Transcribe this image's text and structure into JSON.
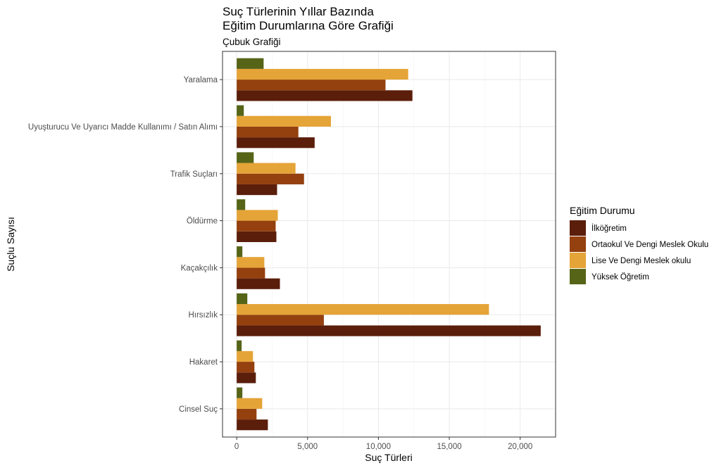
{
  "chart_data": {
    "type": "bar",
    "orientation": "horizontal",
    "title_lines": [
      "Suç Türlerinin Yıllar Bazında",
      "Eğitim Durumlarına Göre Grafiği"
    ],
    "subtitle": "Çubuk Grafiği",
    "xlabel": "Suç Türleri",
    "ylabel": "Suçlu Sayısı",
    "xlim": [
      -1000,
      22500
    ],
    "x_ticks": [
      0,
      5000,
      10000,
      15000,
      20000
    ],
    "x_tick_labels": [
      "0",
      "5,000",
      "10,000",
      "15,000",
      "20,000"
    ],
    "grid": true,
    "legend_position": "right",
    "legend_title": "Eğitim Durumu",
    "categories": [
      "Yaralama",
      "Uyuşturucu Ve Uyarıcı  Madde Kullanımı / Satın Alımı",
      "Trafik Suçları",
      "Öldürme",
      "Kaçakçılık",
      "Hırsızlık",
      "Hakaret",
      "Cinsel Suç"
    ],
    "series": [
      {
        "name": "İlköğretim",
        "color": "#5a1e0a",
        "values": [
          12400,
          5500,
          2850,
          2800,
          3050,
          21450,
          1350,
          2200
        ]
      },
      {
        "name": "Ortaokul Ve Dengi Meslek Okulu",
        "color": "#94400f",
        "values": [
          10500,
          4350,
          4750,
          2750,
          2000,
          6150,
          1250,
          1400
        ]
      },
      {
        "name": "Lise Ve Dengi Meslek okulu",
        "color": "#e5a437",
        "values": [
          12100,
          6650,
          4150,
          2900,
          1950,
          17800,
          1150,
          1800
        ]
      },
      {
        "name": "Yüksek Öğretim",
        "color": "#566418",
        "values": [
          1900,
          500,
          1200,
          600,
          400,
          750,
          350,
          400
        ]
      }
    ]
  }
}
